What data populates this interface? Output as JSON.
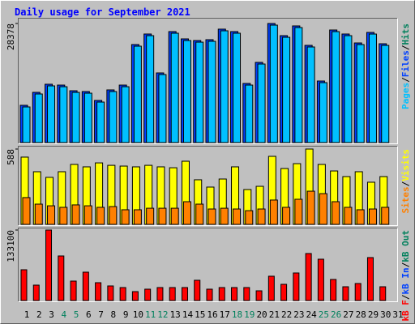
{
  "title": "Daily usage for September 2021",
  "categories": [
    "1",
    "2",
    "3",
    "4",
    "5",
    "6",
    "7",
    "8",
    "9",
    "10",
    "11",
    "12",
    "13",
    "14",
    "15",
    "16",
    "17",
    "18",
    "19",
    "20",
    "21",
    "22",
    "23",
    "24",
    "25",
    "26",
    "27",
    "28",
    "29",
    "30",
    "31"
  ],
  "day_color": "#000000",
  "weekend_days": [
    4,
    5,
    11,
    12,
    18,
    19,
    25,
    26
  ],
  "weekend_color": "#00805c",
  "chart_data": [
    {
      "type": "bar",
      "ylim": [
        0,
        28378
      ],
      "yticks": [
        28378
      ],
      "separator": "/",
      "legend": [
        {
          "text": "Pages",
          "color": "#00c0ff"
        },
        {
          "text": "Files",
          "color": "#0040ff"
        },
        {
          "text": "Hits",
          "color": "#00805c"
        }
      ],
      "series": [
        {
          "color": "#0040ff",
          "values": [
            8880,
            11970,
            13900,
            13700,
            12350,
            12160,
            10040,
            12550,
            13700,
            23360,
            25870,
            16600,
            26450,
            24710,
            24320,
            24520,
            27030,
            26450,
            14090,
            19110,
            28378,
            25480,
            27800,
            23170,
            14670,
            26830,
            25870,
            23740,
            26250,
            23550,
            null
          ]
        },
        {
          "color": "#00c0ff",
          "values": [
            8490,
            11580,
            13510,
            13310,
            11960,
            11770,
            9650,
            12160,
            13310,
            22970,
            25480,
            16210,
            26060,
            24320,
            23930,
            24130,
            26640,
            26060,
            13700,
            18720,
            27990,
            25090,
            27410,
            22780,
            14280,
            26440,
            25480,
            23350,
            25860,
            23160,
            null
          ]
        }
      ]
    },
    {
      "type": "bar",
      "ylim": [
        0,
        588
      ],
      "yticks": [
        588
      ],
      "separator": "/",
      "legend": [
        {
          "text": "Sites",
          "color": "#ff8000"
        },
        {
          "text": "Visits",
          "color": "#ffff00"
        }
      ],
      "series": [
        {
          "color": "#ffff00",
          "values": [
            525,
            411,
            367,
            411,
            468,
            449,
            480,
            461,
            455,
            449,
            461,
            449,
            442,
            493,
            348,
            291,
            354,
            449,
            272,
            297,
            531,
            436,
            474,
            588,
            468,
            417,
            373,
            411,
            329,
            373,
            null
          ]
        },
        {
          "color": "#ff8000",
          "values": [
            209,
            158,
            145,
            133,
            152,
            145,
            133,
            139,
            114,
            114,
            126,
            126,
            126,
            177,
            158,
            120,
            126,
            120,
            107,
            120,
            190,
            133,
            196,
            259,
            240,
            177,
            133,
            114,
            120,
            133,
            null
          ]
        }
      ]
    },
    {
      "type": "bar",
      "ylim": [
        0,
        133100
      ],
      "yticks": [
        133100
      ],
      "separator": "/",
      "legend": [
        {
          "text": "kB F",
          "color": "#ff0000"
        },
        {
          "text": "kB In",
          "color": "#0040ff"
        },
        {
          "text": "kB Out",
          "color": "#00805c"
        }
      ],
      "series": [
        {
          "color": "#ff0000",
          "values": [
            58140,
            29070,
            133100,
            84150,
            36720,
            53550,
            33660,
            27540,
            24480,
            16830,
            21420,
            24480,
            24480,
            24480,
            38250,
            21420,
            24480,
            24480,
            24480,
            18360,
            45900,
            30600,
            52020,
            88740,
            78030,
            39780,
            26010,
            32130,
            81090,
            26010,
            null
          ]
        }
      ]
    }
  ]
}
